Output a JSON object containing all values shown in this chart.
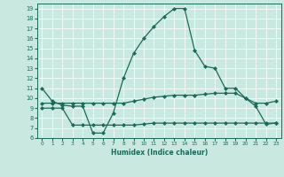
{
  "xlabel": "Humidex (Indice chaleur)",
  "bg_color": "#c8e8e0",
  "line_color": "#1a6b5a",
  "grid_color": "#ffffff",
  "xlim": [
    -0.5,
    23.5
  ],
  "ylim": [
    6,
    19.5
  ],
  "xticks": [
    0,
    1,
    2,
    3,
    4,
    5,
    6,
    7,
    8,
    9,
    10,
    11,
    12,
    13,
    14,
    15,
    16,
    17,
    18,
    19,
    20,
    21,
    22,
    23
  ],
  "yticks": [
    6,
    7,
    8,
    9,
    10,
    11,
    12,
    13,
    14,
    15,
    16,
    17,
    18,
    19
  ],
  "line1_x": [
    0,
    1,
    2,
    3,
    4,
    5,
    6,
    7,
    8,
    9,
    10,
    11,
    12,
    13,
    14,
    15,
    16,
    17,
    18,
    19,
    20,
    21,
    22,
    23
  ],
  "line1_y": [
    11.0,
    9.7,
    9.3,
    9.2,
    9.2,
    6.5,
    6.5,
    8.5,
    12.0,
    14.5,
    16.0,
    17.2,
    18.2,
    19.0,
    19.0,
    14.8,
    13.2,
    13.0,
    11.0,
    11.0,
    10.0,
    9.2,
    7.4,
    7.5
  ],
  "line2_x": [
    0,
    1,
    2,
    3,
    4,
    5,
    6,
    7,
    8,
    9,
    10,
    11,
    12,
    13,
    14,
    15,
    16,
    17,
    18,
    19,
    20,
    21,
    22,
    23
  ],
  "line2_y": [
    9.5,
    9.5,
    9.5,
    9.5,
    9.5,
    9.5,
    9.5,
    9.5,
    9.5,
    9.7,
    9.9,
    10.1,
    10.2,
    10.3,
    10.3,
    10.3,
    10.4,
    10.5,
    10.5,
    10.5,
    10.0,
    9.5,
    9.5,
    9.7
  ],
  "line3_x": [
    0,
    1,
    2,
    3,
    4,
    5,
    6,
    7,
    8,
    9,
    10,
    11,
    12,
    13,
    14,
    15,
    16,
    17,
    18,
    19,
    20,
    21,
    22,
    23
  ],
  "line3_y": [
    9.0,
    9.0,
    9.0,
    7.3,
    7.3,
    7.3,
    7.3,
    7.3,
    7.3,
    7.3,
    7.4,
    7.5,
    7.5,
    7.5,
    7.5,
    7.5,
    7.5,
    7.5,
    7.5,
    7.5,
    7.5,
    7.5,
    7.5,
    7.5
  ]
}
